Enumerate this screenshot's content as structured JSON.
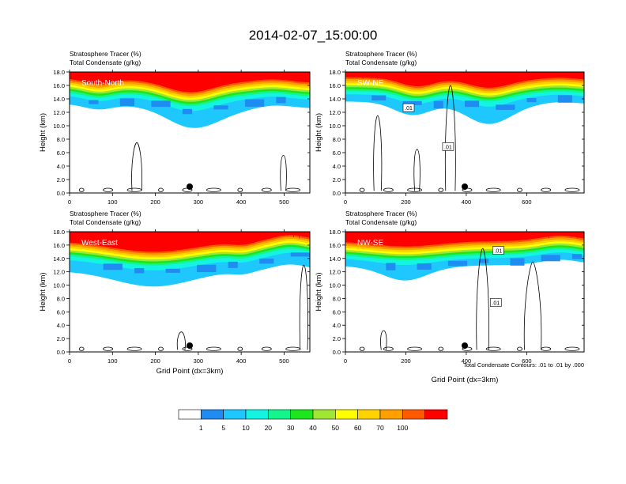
{
  "title": "2014-02-07_15:00:00",
  "colors": {
    "levels": [
      "#ffffff",
      "#1e8cf0",
      "#1ec8ff",
      "#14f5e1",
      "#14f58c",
      "#1ee61e",
      "#a0e632",
      "#ffff00",
      "#ffd200",
      "#ffa000",
      "#ff5a00",
      "#ff0000"
    ],
    "contour": "#000000",
    "marker": "#000000"
  },
  "footnote": "Total Condensate Contours: .01 to .01 by .000",
  "contour_label": ".01",
  "chart_data": [
    {
      "type": "heatmap",
      "name": "South-North",
      "field1": "Stratosphere Tracer   (%)",
      "field2": "Total Condensate   (g/kg)",
      "ylabel": "Height (km)",
      "xlabel": "",
      "ylim": [
        0,
        18
      ],
      "yticks": [
        "0.0",
        "2.0",
        "4.0",
        "6.0",
        "8.0",
        "10.0",
        "12.0",
        "14.0",
        "16.0",
        "18.0"
      ],
      "xlim": [
        0,
        560
      ],
      "xticks": [
        0,
        100,
        200,
        300,
        400,
        500
      ],
      "marker_x": 280
    },
    {
      "type": "heatmap",
      "name": "SW-NE",
      "field1": "Stratosphere Tracer   (%)",
      "field2": "Total Condensate   (g/kg)",
      "ylabel": "Height (km)",
      "xlabel": "",
      "ylim": [
        0,
        18
      ],
      "yticks": [
        "0.0",
        "2.0",
        "4.0",
        "6.0",
        "8.0",
        "10.0",
        "12.0",
        "14.0",
        "16.0",
        "18.0"
      ],
      "xlim": [
        0,
        790
      ],
      "xticks": [
        0,
        200,
        400,
        600
      ],
      "marker_x": 395
    },
    {
      "type": "heatmap",
      "name": "West-East",
      "field1": "Stratosphere Tracer   (%)",
      "field2": "Total Condensate   (g/kg)",
      "ylabel": "Height (km)",
      "xlabel": "Grid Point (dx=3km)",
      "ylim": [
        0,
        18
      ],
      "yticks": [
        "0.0",
        "2.0",
        "4.0",
        "6.0",
        "8.0",
        "10.0",
        "12.0",
        "14.0",
        "16.0",
        "18.0"
      ],
      "xlim": [
        0,
        560
      ],
      "xticks": [
        0,
        100,
        200,
        300,
        400,
        500
      ],
      "marker_x": 280
    },
    {
      "type": "heatmap",
      "name": "NW-SE",
      "field1": "Stratosphere Tracer   (%)",
      "field2": "Total Condensate   (g/kg)",
      "ylabel": "Height (km)",
      "xlabel": "Grid Point (dx=3km)",
      "ylim": [
        0,
        18
      ],
      "yticks": [
        "0.0",
        "2.0",
        "4.0",
        "6.0",
        "8.0",
        "10.0",
        "12.0",
        "14.0",
        "16.0",
        "18.0"
      ],
      "xlim": [
        0,
        790
      ],
      "xticks": [
        0,
        200,
        400,
        600
      ],
      "marker_x": 395
    }
  ],
  "colorbar": {
    "labels": [
      "1",
      "5",
      "10",
      "20",
      "30",
      "40",
      "50",
      "60",
      "70",
      "100"
    ]
  }
}
